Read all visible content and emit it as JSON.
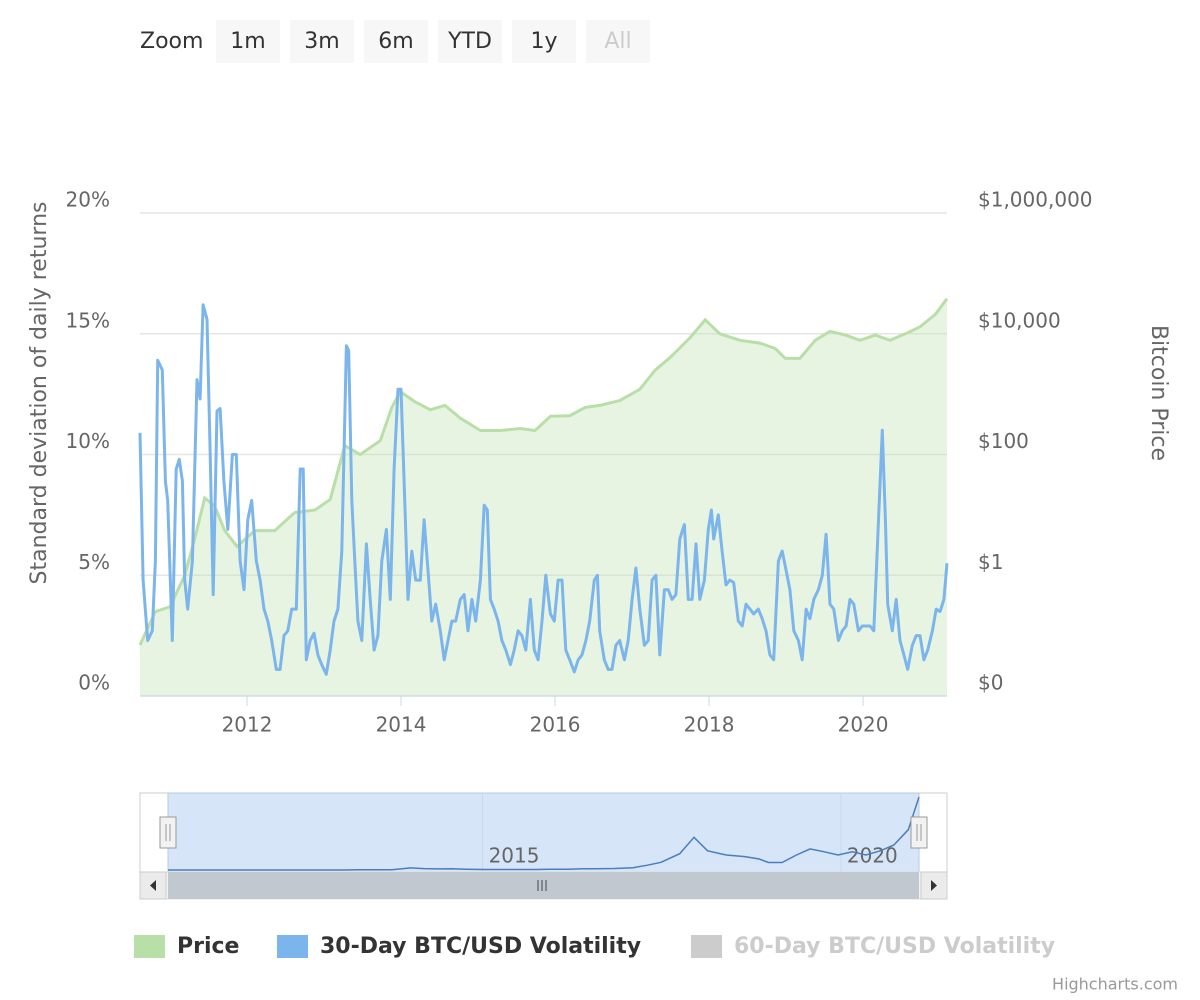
{
  "range_selector": {
    "label": "Zoom",
    "buttons": [
      "1m",
      "3m",
      "6m",
      "YTD",
      "1y",
      "All"
    ],
    "selected": 5
  },
  "credits": "Highcharts.com",
  "chart_data": {
    "type": "line",
    "ylabel": "Standard deviation of daily returns",
    "y2label": "Bitcoin Price",
    "xlim": [
      2010.61,
      2021.09
    ],
    "xticks": [
      2012,
      2014,
      2016,
      2018,
      2020
    ],
    "ylim": [
      0,
      20
    ],
    "yticks": [
      {
        "value": 0,
        "label": "0%"
      },
      {
        "value": 5,
        "label": "5%"
      },
      {
        "value": 10,
        "label": "10%"
      },
      {
        "value": 15,
        "label": "15%"
      },
      {
        "value": 20,
        "label": "20%"
      }
    ],
    "y2lim": [
      0.01,
      1000000
    ],
    "y2log": true,
    "y2ticks": [
      {
        "value": 0.01,
        "label": "$0"
      },
      {
        "value": 1,
        "label": "$1"
      },
      {
        "value": 100,
        "label": "$100"
      },
      {
        "value": 10000,
        "label": "$10,000"
      },
      {
        "value": 1000000,
        "label": "$1,000,000"
      }
    ],
    "grid": true,
    "legend": "bottom",
    "navigator": {
      "xticks": [
        2015,
        2020
      ]
    },
    "series": [
      {
        "name": "Price",
        "color": "#b9dfa9",
        "type": "area",
        "axis": "y2",
        "x": [
          2010.61,
          2010.81,
          2011.0,
          2011.19,
          2011.32,
          2011.45,
          2011.58,
          2011.71,
          2011.87,
          2012.1,
          2012.36,
          2012.62,
          2012.88,
          2013.08,
          2013.27,
          2013.47,
          2013.73,
          2013.88,
          2013.99,
          2014.18,
          2014.38,
          2014.57,
          2014.77,
          2015.03,
          2015.29,
          2015.55,
          2015.74,
          2015.94,
          2016.19,
          2016.39,
          2016.58,
          2016.84,
          2017.1,
          2017.3,
          2017.49,
          2017.75,
          2017.95,
          2018.14,
          2018.4,
          2018.66,
          2018.86,
          2018.99,
          2019.18,
          2019.38,
          2019.57,
          2019.77,
          2019.96,
          2020.16,
          2020.35,
          2020.55,
          2020.74,
          2020.94,
          2021.09
        ],
        "values": [
          0.07,
          0.25,
          0.3,
          1,
          4,
          19,
          14,
          5.5,
          3,
          5.5,
          5.5,
          11,
          12,
          18,
          140,
          100,
          170,
          600,
          1100,
          750,
          550,
          650,
          400,
          250,
          250,
          270,
          250,
          430,
          440,
          600,
          650,
          780,
          1200,
          2500,
          4000,
          8500,
          17000,
          10000,
          7800,
          7000,
          5700,
          3900,
          3900,
          7800,
          11000,
          9500,
          7800,
          9500,
          7800,
          10000,
          13000,
          21000,
          38000
        ]
      },
      {
        "name": "30-Day BTC/USD Volatility",
        "color": "#7cb5ec",
        "type": "line",
        "x": [
          2010.61,
          2010.65,
          2010.71,
          2010.77,
          2010.81,
          2010.84,
          2010.9,
          2010.94,
          2010.97,
          2011.03,
          2011.08,
          2011.12,
          2011.16,
          2011.19,
          2011.23,
          2011.29,
          2011.35,
          2011.39,
          2011.43,
          2011.48,
          2011.52,
          2011.56,
          2011.61,
          2011.65,
          2011.7,
          2011.75,
          2011.81,
          2011.86,
          2011.91,
          2011.96,
          2012.01,
          2012.06,
          2012.12,
          2012.17,
          2012.22,
          2012.27,
          2012.32,
          2012.38,
          2012.43,
          2012.48,
          2012.53,
          2012.58,
          2012.64,
          2012.69,
          2012.73,
          2012.77,
          2012.82,
          2012.87,
          2012.92,
          2012.97,
          2013.03,
          2013.08,
          2013.13,
          2013.18,
          2013.23,
          2013.29,
          2013.32,
          2013.36,
          2013.4,
          2013.44,
          2013.49,
          2013.55,
          2013.6,
          2013.65,
          2013.7,
          2013.75,
          2013.81,
          2013.86,
          2013.91,
          2013.96,
          2014.0,
          2014.04,
          2014.09,
          2014.14,
          2014.19,
          2014.25,
          2014.3,
          2014.35,
          2014.4,
          2014.45,
          2014.51,
          2014.56,
          2014.61,
          2014.66,
          2014.71,
          2014.77,
          2014.82,
          2014.87,
          2014.92,
          2014.97,
          2015.03,
          2015.08,
          2015.12,
          2015.16,
          2015.21,
          2015.26,
          2015.31,
          2015.36,
          2015.42,
          2015.47,
          2015.52,
          2015.57,
          2015.62,
          2015.68,
          2015.73,
          2015.78,
          2015.83,
          2015.88,
          2015.94,
          2015.99,
          2016.04,
          2016.09,
          2016.14,
          2016.19,
          2016.25,
          2016.3,
          2016.35,
          2016.4,
          2016.45,
          2016.51,
          2016.55,
          2016.58,
          2016.64,
          2016.69,
          2016.74,
          2016.79,
          2016.84,
          2016.9,
          2016.95,
          2017.0,
          2017.05,
          2017.1,
          2017.16,
          2017.21,
          2017.26,
          2017.31,
          2017.36,
          2017.42,
          2017.47,
          2017.52,
          2017.57,
          2017.62,
          2017.68,
          2017.73,
          2017.78,
          2017.83,
          2017.88,
          2017.94,
          2017.99,
          2018.03,
          2018.06,
          2018.12,
          2018.17,
          2018.22,
          2018.27,
          2018.32,
          2018.38,
          2018.43,
          2018.48,
          2018.53,
          2018.58,
          2018.64,
          2018.69,
          2018.74,
          2018.79,
          2018.84,
          2018.9,
          2018.95,
          2019.0,
          2019.05,
          2019.1,
          2019.16,
          2019.21,
          2019.26,
          2019.31,
          2019.36,
          2019.42,
          2019.47,
          2019.52,
          2019.57,
          2019.62,
          2019.68,
          2019.73,
          2019.78,
          2019.83,
          2019.88,
          2019.94,
          2019.99,
          2020.04,
          2020.09,
          2020.14,
          2020.19,
          2020.25,
          2020.29,
          2020.32,
          2020.38,
          2020.43,
          2020.48,
          2020.53,
          2020.58,
          2020.64,
          2020.69,
          2020.74,
          2020.79,
          2020.84,
          2020.9,
          2020.95,
          2021.0,
          2021.05,
          2021.09
        ],
        "values": [
          10.9,
          4.8,
          2.3,
          2.7,
          5.6,
          13.9,
          13.5,
          8.9,
          8.1,
          2.3,
          9.4,
          9.8,
          8.9,
          4.8,
          3.6,
          5.6,
          13.1,
          12.3,
          16.2,
          15.6,
          10.2,
          4.2,
          11.8,
          11.9,
          8.9,
          6.9,
          10.0,
          10.0,
          5.6,
          4.4,
          7.3,
          8.1,
          5.6,
          4.8,
          3.6,
          3.1,
          2.3,
          1.1,
          1.1,
          2.5,
          2.7,
          3.6,
          3.6,
          9.4,
          9.4,
          1.5,
          2.3,
          2.6,
          1.7,
          1.3,
          0.9,
          1.9,
          3.1,
          3.6,
          6.0,
          14.5,
          14.3,
          8.1,
          5.6,
          3.1,
          2.3,
          6.3,
          4.0,
          1.9,
          2.5,
          5.6,
          6.9,
          4.0,
          9.4,
          12.7,
          12.7,
          8.9,
          4.0,
          6.0,
          4.8,
          4.8,
          7.3,
          5.2,
          3.1,
          3.8,
          2.7,
          1.5,
          2.3,
          3.1,
          3.1,
          4.0,
          4.2,
          2.7,
          4.0,
          3.1,
          4.8,
          7.9,
          7.7,
          4.0,
          3.6,
          3.1,
          2.3,
          1.9,
          1.3,
          1.9,
          2.7,
          2.5,
          1.9,
          4.0,
          1.9,
          1.5,
          3.1,
          5.0,
          3.4,
          3.1,
          4.8,
          4.8,
          1.9,
          1.5,
          1.0,
          1.5,
          1.7,
          2.3,
          3.1,
          4.8,
          5.0,
          2.7,
          1.5,
          1.1,
          1.1,
          2.1,
          2.3,
          1.5,
          2.3,
          4.0,
          5.3,
          3.6,
          2.1,
          2.3,
          4.8,
          5.0,
          1.7,
          4.4,
          4.4,
          4.0,
          4.2,
          6.5,
          7.1,
          4.0,
          4.0,
          6.3,
          4.0,
          4.8,
          6.9,
          7.7,
          6.5,
          7.5,
          6.0,
          4.6,
          4.8,
          4.7,
          3.1,
          2.9,
          3.8,
          3.6,
          3.4,
          3.6,
          3.2,
          2.7,
          1.7,
          1.5,
          5.6,
          6.0,
          5.2,
          4.4,
          2.7,
          2.3,
          1.5,
          3.6,
          3.2,
          4.0,
          4.4,
          5.0,
          6.7,
          3.8,
          3.6,
          2.3,
          2.7,
          2.9,
          4.0,
          3.8,
          2.7,
          2.9,
          2.9,
          2.9,
          2.7,
          6.5,
          11.0,
          7.3,
          3.8,
          2.7,
          4.0,
          2.3,
          1.7,
          1.1,
          2.1,
          2.5,
          2.5,
          1.5,
          1.9,
          2.7,
          3.6,
          3.5,
          4.0,
          5.5
        ]
      },
      {
        "name": "60-Day BTC/USD Volatility",
        "color": "#cccccc",
        "visible": false
      }
    ]
  }
}
